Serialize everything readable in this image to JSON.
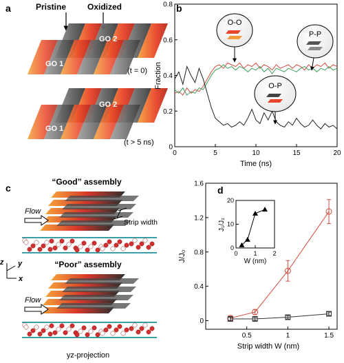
{
  "panels": {
    "a": {
      "letter": "a",
      "label_pristine": "Pristine",
      "label_oxidized": "Oxidized",
      "top_sheet_1": "GO 1",
      "top_sheet_2": "GO 2",
      "bottom_sheet_1": "GO 1",
      "bottom_sheet_2": "GO 2",
      "time_top": "(t = 0)",
      "time_bottom": "(t > 5 ns)"
    },
    "b": {
      "letter": "b",
      "bubble_oo": "O-O",
      "bubble_pp": "P-P",
      "bubble_op": "O-P"
    },
    "c": {
      "letter": "c",
      "good_title": "“Good” assembly",
      "poor_title": "“Poor” assembly",
      "flow_top": "Flow",
      "flow_bottom": "Flow",
      "strip_width": "Strip width",
      "axis_x": "x",
      "axis_y": "y",
      "axis_z": "z",
      "projection": "yz-projection"
    },
    "d": {
      "letter": "d",
      "inset_ylabel": "J₁/J₂",
      "inset_xlabel": "W (nm)"
    }
  },
  "colors": {
    "oxidized_red": "#e8452a",
    "oxidized_orange": "#f39a3a",
    "pristine_gray": "#6a6a6a",
    "series_red": "#d64a3e",
    "series_green": "#3aa05a",
    "series_black": "#222222"
  },
  "chart_data": [
    {
      "type": "line",
      "panel": "b",
      "xlabel": "Time (ns)",
      "ylabel": "Fraction",
      "xlim": [
        0,
        20
      ],
      "ylim": [
        0,
        0.8
      ],
      "xticks": [
        0,
        5,
        10,
        15,
        20
      ],
      "yticks": [
        0,
        0.2,
        0.4,
        0.6,
        0.8
      ],
      "series": [
        {
          "name": "O-O",
          "color": "#d64a3e",
          "x": [
            0,
            0.5,
            1,
            1.5,
            2,
            2.5,
            3,
            3.5,
            4,
            4.5,
            5,
            5.5,
            6,
            6.5,
            7,
            7.5,
            8,
            8.5,
            9,
            9.5,
            10,
            10.5,
            11,
            11.5,
            12,
            12.5,
            13,
            13.5,
            14,
            14.5,
            15,
            15.5,
            16,
            16.5,
            17,
            17.5,
            18,
            18.5,
            19,
            19.5,
            20
          ],
          "values": [
            0.3,
            0.31,
            0.29,
            0.33,
            0.3,
            0.32,
            0.31,
            0.34,
            0.38,
            0.42,
            0.45,
            0.46,
            0.44,
            0.47,
            0.46,
            0.45,
            0.47,
            0.44,
            0.46,
            0.45,
            0.47,
            0.44,
            0.46,
            0.45,
            0.43,
            0.46,
            0.44,
            0.45,
            0.46,
            0.44,
            0.46,
            0.45,
            0.43,
            0.46,
            0.44,
            0.46,
            0.45,
            0.47,
            0.44,
            0.46,
            0.45
          ]
        },
        {
          "name": "P-P",
          "color": "#3aa05a",
          "x": [
            0,
            0.5,
            1,
            1.5,
            2,
            2.5,
            3,
            3.5,
            4,
            4.5,
            5,
            5.5,
            6,
            6.5,
            7,
            7.5,
            8,
            8.5,
            9,
            9.5,
            10,
            10.5,
            11,
            11.5,
            12,
            12.5,
            13,
            13.5,
            14,
            14.5,
            15,
            15.5,
            16,
            16.5,
            17,
            17.5,
            18,
            18.5,
            19,
            19.5,
            20
          ],
          "values": [
            0.32,
            0.3,
            0.33,
            0.29,
            0.31,
            0.3,
            0.33,
            0.32,
            0.36,
            0.4,
            0.43,
            0.44,
            0.46,
            0.44,
            0.45,
            0.43,
            0.45,
            0.44,
            0.42,
            0.44,
            0.43,
            0.45,
            0.42,
            0.44,
            0.41,
            0.44,
            0.43,
            0.42,
            0.44,
            0.43,
            0.42,
            0.44,
            0.45,
            0.43,
            0.44,
            0.42,
            0.44,
            0.43,
            0.45,
            0.43,
            0.44
          ]
        },
        {
          "name": "O-P",
          "color": "#222222",
          "x": [
            0,
            0.5,
            1,
            1.5,
            2,
            2.5,
            3,
            3.5,
            4,
            4.5,
            5,
            5.5,
            6,
            6.5,
            7,
            7.5,
            8,
            8.5,
            9,
            9.5,
            10,
            10.5,
            11,
            11.5,
            12,
            12.5,
            13,
            13.5,
            14,
            14.5,
            15,
            15.5,
            16,
            16.5,
            17,
            17.5,
            18,
            18.5,
            19,
            19.5,
            20
          ],
          "values": [
            0.38,
            0.42,
            0.35,
            0.45,
            0.4,
            0.36,
            0.44,
            0.38,
            0.3,
            0.22,
            0.16,
            0.14,
            0.12,
            0.13,
            0.11,
            0.12,
            0.14,
            0.12,
            0.16,
            0.21,
            0.15,
            0.13,
            0.19,
            0.15,
            0.2,
            0.14,
            0.12,
            0.11,
            0.14,
            0.12,
            0.16,
            0.13,
            0.11,
            0.12,
            0.15,
            0.12,
            0.1,
            0.13,
            0.11,
            0.12,
            0.1
          ]
        }
      ]
    },
    {
      "type": "line",
      "panel": "d",
      "xlabel": "Strip width W (nm)",
      "ylabel": "J/J₀",
      "xlim": [
        0,
        1.6
      ],
      "ylim": [
        -0.1,
        1.6
      ],
      "xticks": [
        0.5,
        1,
        1.5
      ],
      "yticks": [
        0,
        0.4,
        0.8,
        1.2,
        1.6
      ],
      "series": [
        {
          "name": "circles",
          "color": "#d64a3e",
          "marker": "circle",
          "x": [
            0.3,
            0.6,
            1.0,
            1.5
          ],
          "values": [
            0.03,
            0.1,
            0.58,
            1.27
          ],
          "errors": [
            0.03,
            0.03,
            0.12,
            0.14
          ]
        },
        {
          "name": "squares",
          "color": "#333333",
          "marker": "square",
          "x": [
            0.3,
            0.6,
            1.0,
            1.5
          ],
          "values": [
            0.02,
            0.02,
            0.04,
            0.08
          ],
          "errors": [
            0.02,
            0.02,
            0.02,
            0.02
          ]
        }
      ]
    },
    {
      "type": "line",
      "panel": "d-inset",
      "xlabel": "W (nm)",
      "ylabel": "J₁/J₂",
      "xlim": [
        0,
        2
      ],
      "ylim": [
        0,
        20
      ],
      "xticks": [
        0,
        1,
        2
      ],
      "yticks": [
        0,
        10,
        20
      ],
      "series": [
        {
          "name": "ratio",
          "color": "#000000",
          "marker": "triangle",
          "x": [
            0.3,
            0.6,
            1.0,
            1.5
          ],
          "values": [
            1.2,
            3.5,
            14.5,
            16.2
          ]
        }
      ]
    }
  ]
}
